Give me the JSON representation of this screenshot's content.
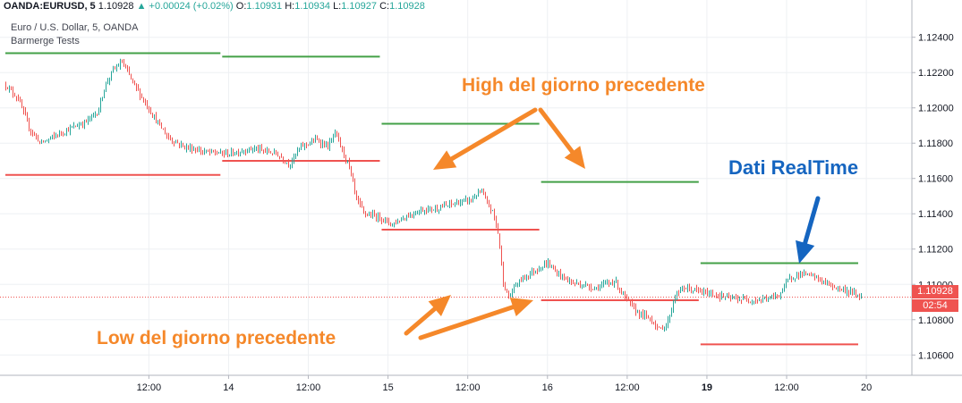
{
  "header": {
    "symbol": "OANDA:EURUSD, 5",
    "last": "1.10928",
    "change_arrow": "▲",
    "change": "+0.00024 (+0.02%)",
    "o_label": "O:",
    "o_value": "1.10931",
    "h_label": "H:",
    "h_value": "1.10934",
    "l_label": "L:",
    "l_value": "1.10927",
    "c_label": "C:",
    "c_value": "1.10928",
    "subtitle": "Euro / U.S. Dollar, 5, OANDA",
    "indicator": "Barmerge Tests"
  },
  "annotations": {
    "high_label": "High del giorno precedente",
    "low_label": "Low del giorno precedente",
    "realtime_label": "Dati RealTime"
  },
  "badges": {
    "price": "1.10928",
    "countdown": "02:54"
  },
  "colors": {
    "background": "#ffffff",
    "up_candle": "#26a69a",
    "down_candle": "#ef5350",
    "high_line": "#43a047",
    "low_line": "#ef5350",
    "annotation_orange": "#f5882a",
    "annotation_blue": "#1565c0",
    "grid": "#eef0f3",
    "price_line": "#ef5350"
  },
  "chart_data": {
    "type": "candlestick",
    "ylim": [
      1.1049,
      1.1252
    ],
    "y_ticks": [
      "1.12400",
      "1.12200",
      "1.12000",
      "1.11800",
      "1.11600",
      "1.11400",
      "1.11200",
      "1.11000",
      "1.10800",
      "1.10600"
    ],
    "x_ticks": [
      {
        "label": "12:00",
        "pos": 0.5,
        "bold": false
      },
      {
        "label": "14",
        "pos": 1.0,
        "bold": false
      },
      {
        "label": "12:00",
        "pos": 1.5,
        "bold": false
      },
      {
        "label": "15",
        "pos": 2.0,
        "bold": false
      },
      {
        "label": "12:00",
        "pos": 2.5,
        "bold": false
      },
      {
        "label": "16",
        "pos": 3.0,
        "bold": false
      },
      {
        "label": "12:00",
        "pos": 3.5,
        "bold": false
      },
      {
        "label": "19",
        "pos": 4.0,
        "bold": true
      },
      {
        "label": "12:00",
        "pos": 4.5,
        "bold": false
      },
      {
        "label": "20",
        "pos": 5.0,
        "bold": false
      }
    ],
    "x_range_days": [
      -0.4,
      5.28
    ],
    "price_path": [
      [
        -0.4,
        1.1213
      ],
      [
        -0.32,
        1.1205
      ],
      [
        -0.25,
        1.1188
      ],
      [
        -0.18,
        1.118
      ],
      [
        -0.05,
        1.1186
      ],
      [
        0.1,
        1.1192
      ],
      [
        0.18,
        1.1198
      ],
      [
        0.22,
        1.1212
      ],
      [
        0.27,
        1.1221
      ],
      [
        0.33,
        1.1226
      ],
      [
        0.4,
        1.1214
      ],
      [
        0.46,
        1.1205
      ],
      [
        0.55,
        1.1192
      ],
      [
        0.62,
        1.1183
      ],
      [
        0.72,
        1.1178
      ],
      [
        0.85,
        1.1175
      ],
      [
        1.0,
        1.1174
      ],
      [
        1.15,
        1.1177
      ],
      [
        1.3,
        1.1174
      ],
      [
        1.38,
        1.1168
      ],
      [
        1.45,
        1.1178
      ],
      [
        1.55,
        1.1182
      ],
      [
        1.62,
        1.1178
      ],
      [
        1.67,
        1.1186
      ],
      [
        1.7,
        1.1178
      ],
      [
        1.75,
        1.1168
      ],
      [
        1.8,
        1.1148
      ],
      [
        1.85,
        1.114
      ],
      [
        1.95,
        1.1138
      ],
      [
        2.02,
        1.1134
      ],
      [
        2.1,
        1.1138
      ],
      [
        2.2,
        1.1142
      ],
      [
        2.3,
        1.1143
      ],
      [
        2.42,
        1.1146
      ],
      [
        2.52,
        1.1148
      ],
      [
        2.58,
        1.1153
      ],
      [
        2.62,
        1.1146
      ],
      [
        2.66,
        1.114
      ],
      [
        2.69,
        1.1128
      ],
      [
        2.72,
        1.1102
      ],
      [
        2.75,
        1.1092
      ],
      [
        2.8,
        1.11
      ],
      [
        2.85,
        1.1104
      ],
      [
        2.92,
        1.1108
      ],
      [
        3.0,
        1.1112
      ],
      [
        3.05,
        1.1107
      ],
      [
        3.15,
        1.1101
      ],
      [
        3.3,
        1.1098
      ],
      [
        3.42,
        1.1102
      ],
      [
        3.48,
        1.1093
      ],
      [
        3.55,
        1.1085
      ],
      [
        3.65,
        1.108
      ],
      [
        3.7,
        1.1074
      ],
      [
        3.75,
        1.1078
      ],
      [
        3.8,
        1.1094
      ],
      [
        3.85,
        1.1098
      ],
      [
        3.95,
        1.1096
      ],
      [
        4.05,
        1.1094
      ],
      [
        4.15,
        1.1092
      ],
      [
        4.3,
        1.1091
      ],
      [
        4.38,
        1.1092
      ],
      [
        4.45,
        1.1094
      ],
      [
        4.52,
        1.1104
      ],
      [
        4.6,
        1.1106
      ],
      [
        4.68,
        1.1104
      ],
      [
        4.78,
        1.1099
      ],
      [
        4.85,
        1.1097
      ],
      [
        4.92,
        1.1095
      ],
      [
        4.97,
        1.10928
      ]
    ],
    "session_lines": {
      "high": [
        {
          "from": -0.4,
          "to": 0.96,
          "value": 1.1231
        },
        {
          "from": 0.96,
          "to": 1.96,
          "value": 1.1229
        },
        {
          "from": 1.96,
          "to": 2.96,
          "value": 1.1191
        },
        {
          "from": 2.96,
          "to": 3.96,
          "value": 1.1158
        },
        {
          "from": 3.96,
          "to": 4.96,
          "value": 1.1112
        }
      ],
      "low": [
        {
          "from": -0.4,
          "to": 0.96,
          "value": 1.1162
        },
        {
          "from": 0.96,
          "to": 1.96,
          "value": 1.117
        },
        {
          "from": 1.96,
          "to": 2.96,
          "value": 1.1131
        },
        {
          "from": 2.96,
          "to": 3.96,
          "value": 1.1091
        },
        {
          "from": 3.96,
          "to": 4.96,
          "value": 1.1066
        }
      ]
    },
    "last_price": 1.10928
  }
}
